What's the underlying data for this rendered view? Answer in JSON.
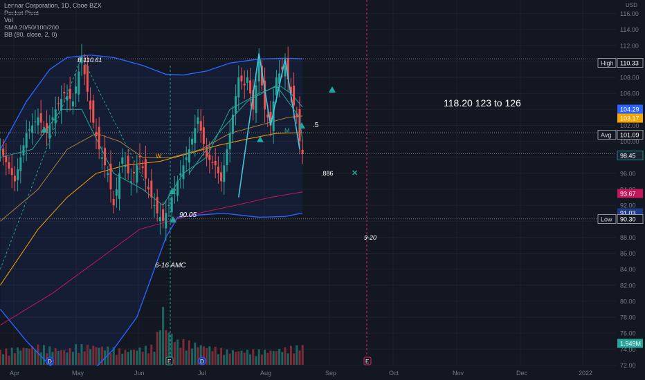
{
  "chart_data": {
    "type": "candlestick",
    "symbol_line": "Lennar Corporation, 1D, Cboe BZX",
    "indicators": [
      "Pocket Pivot",
      "Vol",
      "SMA 20/50/100/200",
      "BB (80, close, 2, 0)"
    ],
    "currency": "USD",
    "y_range": [
      71,
      117
    ],
    "y_ticks": [
      72,
      74,
      76,
      78,
      80,
      82,
      84,
      86,
      88,
      90,
      92,
      94,
      96,
      98,
      100,
      102,
      104,
      106,
      108,
      110,
      112,
      114,
      116
    ],
    "x_ticks": [
      "Apr",
      "May",
      "Jun",
      "Jul",
      "Aug",
      "Sep",
      "Oct",
      "Nov",
      "Dec",
      "2022"
    ],
    "price_path": [
      [
        -3,
        99
      ],
      [
        2,
        95
      ],
      [
        6,
        101
      ],
      [
        10,
        103
      ],
      [
        13,
        101
      ],
      [
        16,
        104
      ],
      [
        19,
        106
      ],
      [
        22,
        105
      ],
      [
        25,
        110.61
      ],
      [
        28,
        104
      ],
      [
        31,
        99
      ],
      [
        34,
        96
      ],
      [
        36,
        92
      ],
      [
        39,
        98
      ],
      [
        42,
        95
      ],
      [
        45,
        98
      ],
      [
        48,
        94
      ],
      [
        51,
        91
      ],
      [
        53,
        90.05
      ],
      [
        56,
        93
      ],
      [
        59,
        96
      ],
      [
        62,
        99
      ],
      [
        65,
        103
      ],
      [
        68,
        98
      ],
      [
        71,
        97
      ],
      [
        73,
        95
      ],
      [
        76,
        101
      ],
      [
        79,
        108
      ],
      [
        81,
        107
      ],
      [
        82,
        108
      ],
      [
        84,
        104
      ],
      [
        86,
        110
      ],
      [
        88,
        104
      ],
      [
        90,
        102
      ],
      [
        92,
        108
      ],
      [
        94,
        109
      ],
      [
        95,
        109.5
      ],
      [
        97,
        106
      ],
      [
        99,
        103
      ],
      [
        100,
        100
      ],
      [
        101,
        98.45
      ]
    ],
    "volume_profile": [
      [
        -3,
        3
      ],
      [
        10,
        4
      ],
      [
        20,
        3
      ],
      [
        23,
        4
      ],
      [
        30,
        4
      ],
      [
        40,
        3
      ],
      [
        50,
        4
      ],
      [
        52,
        9
      ],
      [
        53,
        12
      ],
      [
        54,
        8
      ],
      [
        58,
        5
      ],
      [
        60,
        5
      ],
      [
        75,
        3
      ],
      [
        90,
        3
      ],
      [
        101,
        4
      ]
    ],
    "sma_fast": [
      [
        -3,
        98
      ],
      [
        8,
        99
      ],
      [
        18,
        104
      ],
      [
        25,
        104
      ],
      [
        36,
        96
      ],
      [
        46,
        94
      ],
      [
        53,
        92
      ],
      [
        60,
        96
      ],
      [
        68,
        98
      ],
      [
        76,
        104
      ],
      [
        86,
        106
      ],
      [
        93,
        107
      ],
      [
        97,
        106
      ],
      [
        101,
        104.29
      ]
    ],
    "sma_50": [
      [
        -3,
        90
      ],
      [
        10,
        94
      ],
      [
        20,
        99
      ],
      [
        30,
        101
      ],
      [
        38,
        100
      ],
      [
        46,
        98
      ],
      [
        56,
        98
      ],
      [
        66,
        99
      ],
      [
        76,
        101
      ],
      [
        86,
        102
      ],
      [
        96,
        103
      ],
      [
        101,
        103.17
      ]
    ],
    "sma_100": [
      [
        -3,
        82
      ],
      [
        10,
        89
      ],
      [
        20,
        93
      ],
      [
        30,
        96
      ],
      [
        40,
        97
      ],
      [
        52,
        97.5
      ],
      [
        62,
        98.5
      ],
      [
        72,
        99.5
      ],
      [
        82,
        100.3
      ],
      [
        92,
        101
      ],
      [
        101,
        101.09
      ]
    ],
    "sma_200": [
      [
        -3,
        77
      ],
      [
        15,
        81
      ],
      [
        30,
        85
      ],
      [
        45,
        89
      ],
      [
        55,
        90
      ],
      [
        65,
        91
      ],
      [
        78,
        92
      ],
      [
        90,
        93
      ],
      [
        101,
        93.67
      ]
    ],
    "bb_upper": [
      [
        -3,
        99
      ],
      [
        6,
        105
      ],
      [
        14,
        109
      ],
      [
        20,
        110.5
      ],
      [
        28,
        110.8
      ],
      [
        36,
        110.5
      ],
      [
        46,
        109.5
      ],
      [
        54,
        108.4
      ],
      [
        60,
        108.3
      ],
      [
        68,
        108.8
      ],
      [
        76,
        109.8
      ],
      [
        86,
        110.3
      ],
      [
        95,
        110.4
      ],
      [
        101,
        110.33
      ]
    ],
    "bb_lower": [
      [
        -3,
        79
      ],
      [
        6,
        75
      ],
      [
        14,
        72
      ],
      [
        20,
        70
      ],
      [
        28,
        71
      ],
      [
        36,
        74
      ],
      [
        44,
        78
      ],
      [
        50,
        84
      ],
      [
        54,
        88
      ],
      [
        58,
        90.5
      ],
      [
        66,
        90.8
      ],
      [
        74,
        91
      ],
      [
        86,
        90.5
      ],
      [
        95,
        90.6
      ],
      [
        101,
        91.03
      ]
    ],
    "price_labels": [
      {
        "text": "High",
        "value": "110.33",
        "bg": "#131722",
        "border": "#b2b5be"
      },
      {
        "value": "104.29",
        "bg": "#2962ff"
      },
      {
        "value": "103.17",
        "bg": "#f7a600"
      },
      {
        "text": "Avg",
        "value": "101.09",
        "bg": "#131722",
        "border": "#b2b5be"
      },
      {
        "value": "98.45",
        "bg": "#1a2331",
        "border": "#26a69a"
      },
      {
        "value": "93.67",
        "bg": "#c2185b"
      },
      {
        "value": "91.03",
        "bg": "#1e3a8a"
      },
      {
        "text": "Low",
        "value": "90.30",
        "bg": "#131722",
        "border": "#b2b5be"
      },
      {
        "value": "1.949M",
        "bg": "#26a69a"
      }
    ],
    "annotations": [
      {
        "text": "B 110.61",
        "italic": true
      },
      {
        "text": "90.05",
        "italic": true
      },
      {
        "text": "6-16 AMC",
        "italic": true
      },
      {
        "text": "W"
      },
      {
        "text": "M"
      },
      {
        "text": ".5"
      },
      {
        "text": ".886"
      },
      {
        "text": "9-20",
        "italic": true
      },
      {
        "text": "118.20   123 to 126"
      }
    ],
    "event_badges": [
      "D",
      "E",
      "D",
      "E"
    ]
  }
}
